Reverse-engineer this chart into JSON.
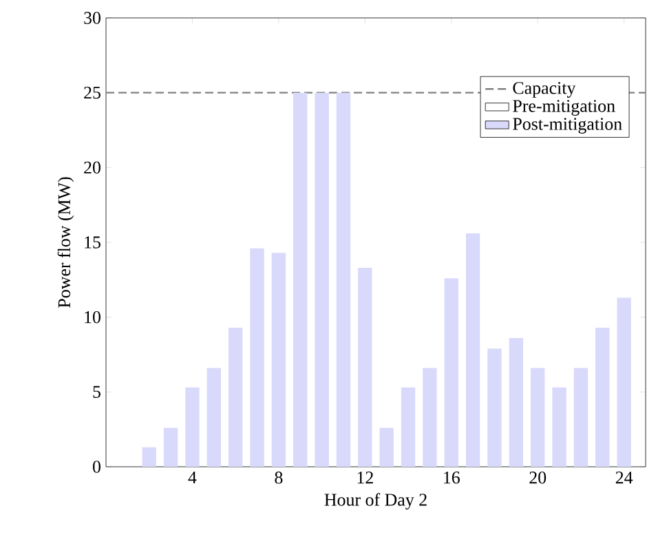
{
  "chart_data": {
    "type": "bar",
    "xlabel": "Hour of Day 2",
    "ylabel": "Power flow (MW)",
    "x": [
      1,
      2,
      3,
      4,
      5,
      6,
      7,
      8,
      9,
      10,
      11,
      12,
      13,
      14,
      15,
      16,
      17,
      18,
      19,
      20,
      21,
      22,
      23,
      24
    ],
    "series": [
      {
        "name": "Pre-mitigation",
        "color": "#ffffff",
        "values": [
          null,
          null,
          null,
          null,
          null,
          null,
          null,
          null,
          null,
          null,
          null,
          null,
          null,
          null,
          null,
          null,
          null,
          null,
          null,
          null,
          null,
          null,
          null,
          null
        ]
      },
      {
        "name": "Post-mitigation",
        "color": "#d9d9fb",
        "values": [
          0,
          1.3,
          2.6,
          5.3,
          6.6,
          9.3,
          14.6,
          14.3,
          25,
          25,
          25,
          13.3,
          2.6,
          5.3,
          6.6,
          12.6,
          15.6,
          7.9,
          8.6,
          6.6,
          5.3,
          6.6,
          9.3,
          11.3
        ]
      }
    ],
    "xlim": [
      0,
      25
    ],
    "xticks": [
      4,
      8,
      12,
      16,
      20,
      24
    ],
    "ylim": [
      0,
      30
    ],
    "yticks": [
      0,
      5,
      10,
      15,
      20,
      25,
      30
    ],
    "ref_lines": [
      {
        "axis": "y",
        "value": 25,
        "label": "Capacity",
        "color": "#808080",
        "line_style": "dashed"
      }
    ],
    "legend": "top right",
    "grid": false
  }
}
